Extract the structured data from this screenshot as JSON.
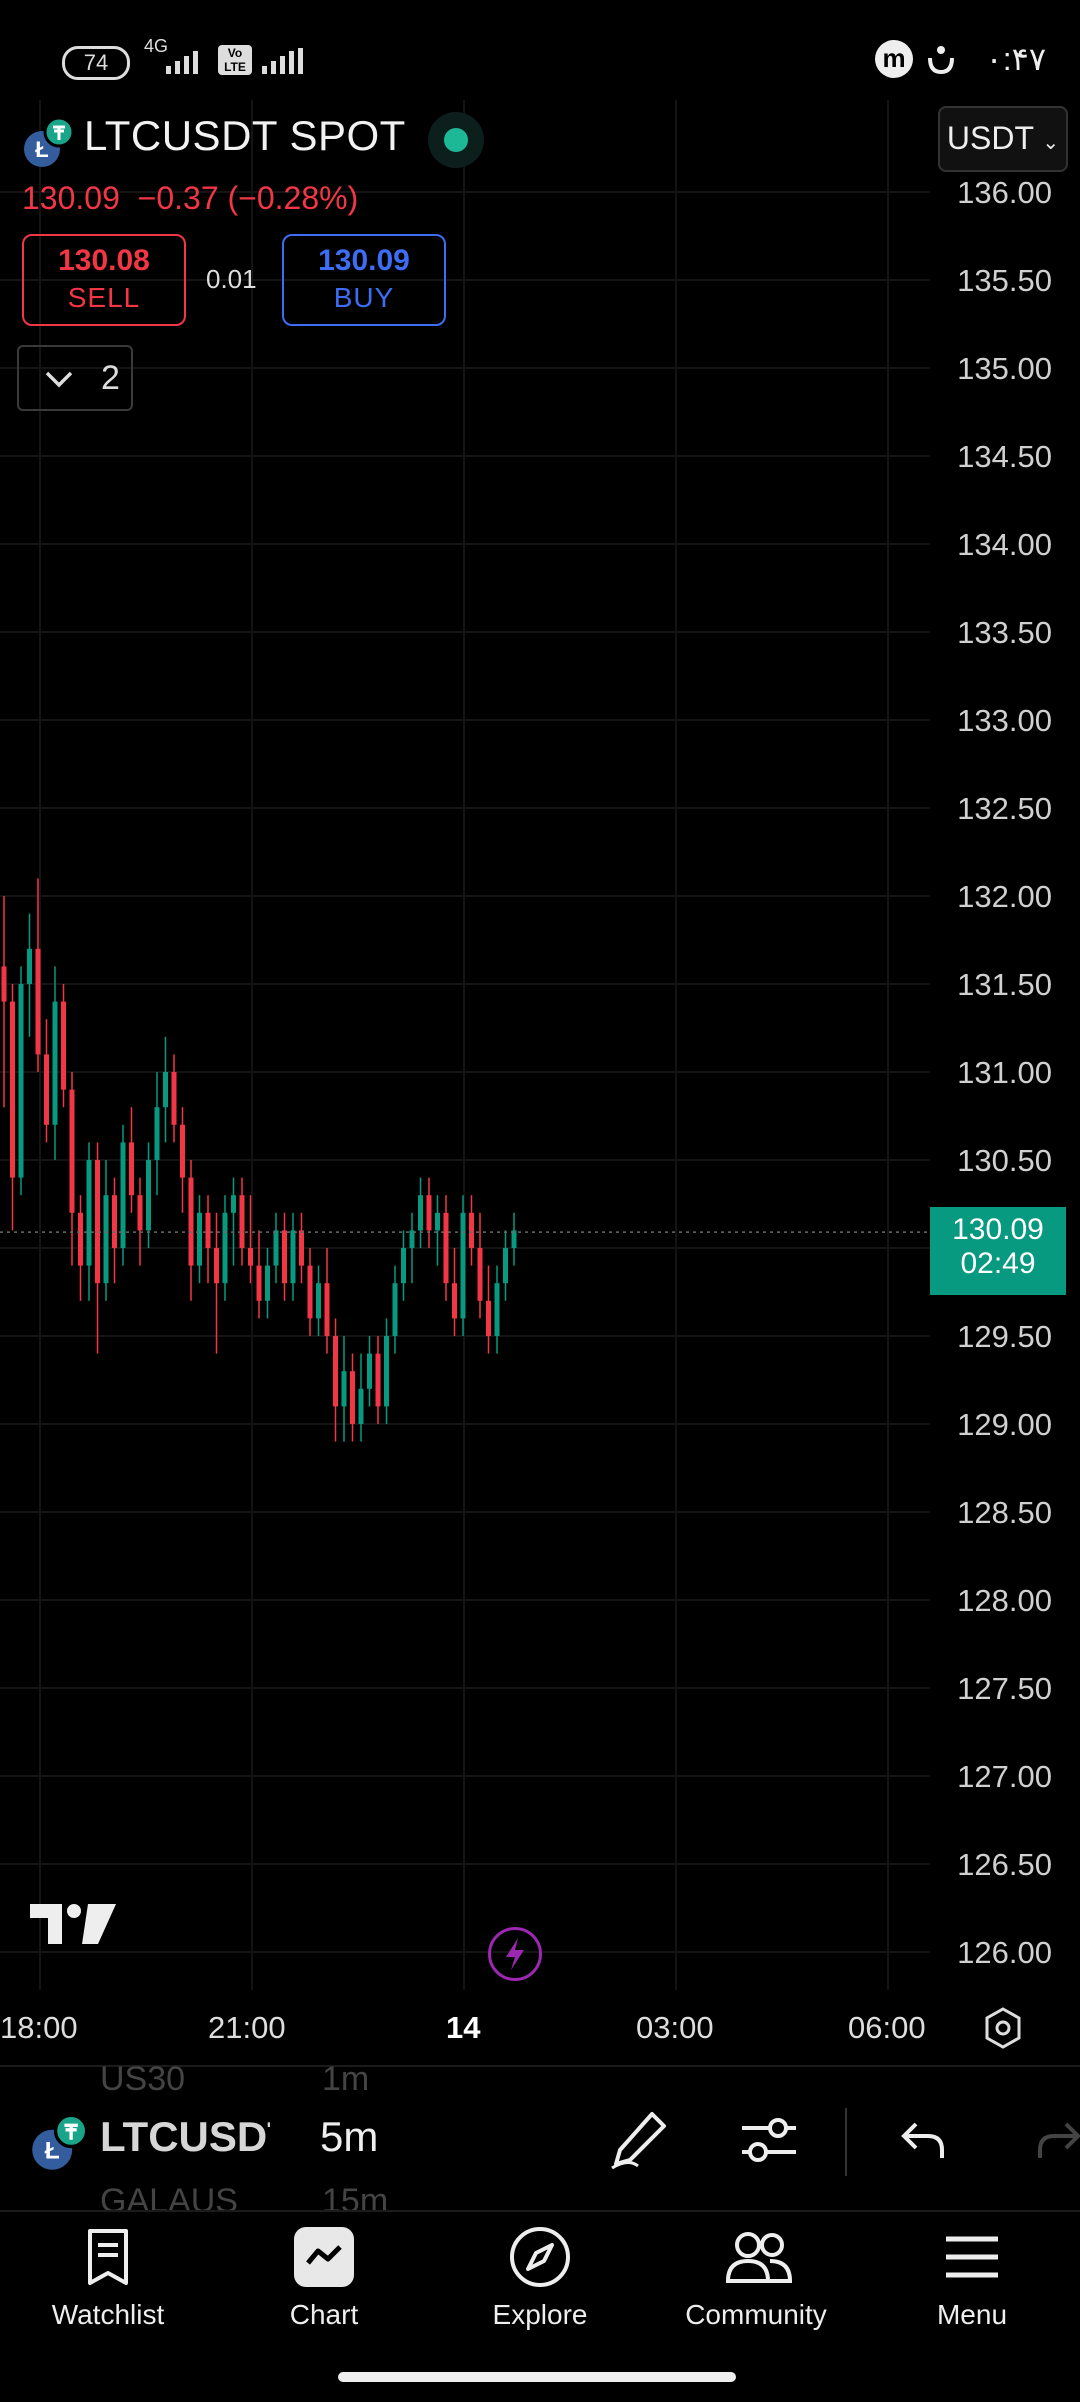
{
  "status_bar": {
    "battery": "74",
    "network": "4G",
    "volte": "Vo LTE",
    "time": "۰:۴۷"
  },
  "header": {
    "symbol_title": "LTCUSDT SPOT",
    "last_price": "130.09",
    "change": "−0.37 (−0.28%)",
    "currency": "USDT",
    "sell_price": "130.08",
    "sell_label": "SELL",
    "buy_price": "130.09",
    "buy_label": "BUY",
    "spread": "0.01",
    "collapsed_count": "2"
  },
  "price_tag": {
    "price": "130.09",
    "countdown": "02:49"
  },
  "chart_data": {
    "type": "candlestick",
    "symbol": "LTCUSDT",
    "interval": "5m",
    "y_ticks": [
      "136.00",
      "135.50",
      "135.00",
      "134.50",
      "134.00",
      "133.50",
      "133.00",
      "132.50",
      "132.00",
      "131.50",
      "131.00",
      "130.50",
      "130.00",
      "129.50",
      "129.00",
      "128.50",
      "128.00",
      "127.50",
      "127.00",
      "126.50",
      "126.00"
    ],
    "x_ticks": [
      "18:00",
      "21:00",
      "14",
      "03:00",
      "06:00"
    ],
    "ylim": [
      125.9,
      136.05
    ],
    "last_price": 130.09,
    "ohlc": [
      [
        131.6,
        132.0,
        130.8,
        131.4
      ],
      [
        131.4,
        131.5,
        130.1,
        130.4
      ],
      [
        130.4,
        131.6,
        130.3,
        131.5
      ],
      [
        131.5,
        131.9,
        131.2,
        131.7
      ],
      [
        131.7,
        132.1,
        131.0,
        131.1
      ],
      [
        131.1,
        131.3,
        130.6,
        130.7
      ],
      [
        130.7,
        131.6,
        130.5,
        131.4
      ],
      [
        131.4,
        131.5,
        130.8,
        130.9
      ],
      [
        130.9,
        131.0,
        129.9,
        130.2
      ],
      [
        130.2,
        130.3,
        129.7,
        129.9
      ],
      [
        129.9,
        130.6,
        129.7,
        130.5
      ],
      [
        130.5,
        130.6,
        129.4,
        129.8
      ],
      [
        129.8,
        130.5,
        129.7,
        130.3
      ],
      [
        130.3,
        130.4,
        129.8,
        130.0
      ],
      [
        130.0,
        130.7,
        129.9,
        130.6
      ],
      [
        130.6,
        130.8,
        130.2,
        130.3
      ],
      [
        130.3,
        130.4,
        129.9,
        130.1
      ],
      [
        130.1,
        130.6,
        130.0,
        130.5
      ],
      [
        130.5,
        131.0,
        130.3,
        130.8
      ],
      [
        130.8,
        131.2,
        130.6,
        131.0
      ],
      [
        131.0,
        131.1,
        130.6,
        130.7
      ],
      [
        130.7,
        130.8,
        130.2,
        130.4
      ],
      [
        130.4,
        130.5,
        129.7,
        129.9
      ],
      [
        129.9,
        130.3,
        129.8,
        130.2
      ],
      [
        130.2,
        130.3,
        129.8,
        130.0
      ],
      [
        130.0,
        130.2,
        129.4,
        129.8
      ],
      [
        129.8,
        130.3,
        129.7,
        130.2
      ],
      [
        130.2,
        130.4,
        129.9,
        130.3
      ],
      [
        130.3,
        130.4,
        129.9,
        130.0
      ],
      [
        130.0,
        130.3,
        129.8,
        129.9
      ],
      [
        129.9,
        130.1,
        129.6,
        129.7
      ],
      [
        129.7,
        130.0,
        129.6,
        129.9
      ],
      [
        129.9,
        130.2,
        129.8,
        130.1
      ],
      [
        130.1,
        130.2,
        129.7,
        129.8
      ],
      [
        129.8,
        130.2,
        129.7,
        130.1
      ],
      [
        130.1,
        130.2,
        129.8,
        129.9
      ],
      [
        129.9,
        130.0,
        129.5,
        129.6
      ],
      [
        129.6,
        129.9,
        129.5,
        129.8
      ],
      [
        129.8,
        130.0,
        129.4,
        129.5
      ],
      [
        129.5,
        129.6,
        128.9,
        129.1
      ],
      [
        129.1,
        129.5,
        128.9,
        129.3
      ],
      [
        129.3,
        129.4,
        128.9,
        129.0
      ],
      [
        129.0,
        129.4,
        128.9,
        129.2
      ],
      [
        129.2,
        129.5,
        129.1,
        129.4
      ],
      [
        129.4,
        129.5,
        129.0,
        129.1
      ],
      [
        129.1,
        129.6,
        129.0,
        129.5
      ],
      [
        129.5,
        129.9,
        129.4,
        129.8
      ],
      [
        129.8,
        130.1,
        129.7,
        130.0
      ],
      [
        130.0,
        130.2,
        129.8,
        130.1
      ],
      [
        130.1,
        130.4,
        130.0,
        130.3
      ],
      [
        130.3,
        130.4,
        130.0,
        130.1
      ],
      [
        130.1,
        130.3,
        129.9,
        130.2
      ],
      [
        130.2,
        130.3,
        129.7,
        129.8
      ],
      [
        129.8,
        130.0,
        129.5,
        129.6
      ],
      [
        129.6,
        130.3,
        129.5,
        130.2
      ],
      [
        130.2,
        130.3,
        129.9,
        130.0
      ],
      [
        130.0,
        130.2,
        129.6,
        129.7
      ],
      [
        129.7,
        129.9,
        129.4,
        129.5
      ],
      [
        129.5,
        129.9,
        129.4,
        129.8
      ],
      [
        129.8,
        130.1,
        129.7,
        130.0
      ],
      [
        130.0,
        130.2,
        129.9,
        130.1
      ]
    ]
  },
  "toolbar": {
    "symbol": "LTCUSDT",
    "interval": "5m",
    "ghost_above_symbol": "US30",
    "ghost_above_interval": "1m",
    "ghost_below_symbol": "GALAUS",
    "ghost_below_interval": "15m"
  },
  "nav": {
    "watchlist": "Watchlist",
    "chart": "Chart",
    "explore": "Explore",
    "community": "Community",
    "menu": "Menu"
  },
  "colors": {
    "up": "#089981",
    "down": "#f23645",
    "buy": "#3d6cf5",
    "accent": "#9c27b0"
  }
}
